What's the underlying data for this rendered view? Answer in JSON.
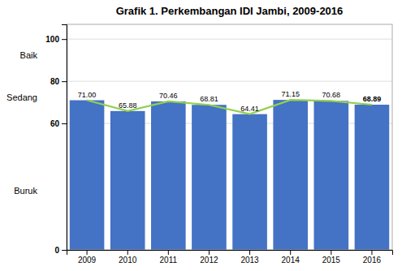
{
  "chart_data": {
    "type": "bar",
    "title": "Grafik 1. Perkembangan IDI Jambi, 2009-2016",
    "categories": [
      "2009",
      "2010",
      "2011",
      "2012",
      "2013",
      "2014",
      "2015",
      "2016"
    ],
    "series": [
      {
        "type": "bar",
        "color": "#4472C4",
        "data_labels": true,
        "values": [
          71.0,
          65.88,
          70.46,
          68.81,
          64.41,
          71.15,
          70.68,
          68.89
        ],
        "value_labels": [
          "71.00",
          "65.88",
          "70.46",
          "68.81",
          "64.41",
          "71.15",
          "70.68",
          "68.89"
        ]
      },
      {
        "type": "line",
        "color": "#92D050",
        "values": [
          71.0,
          65.88,
          70.46,
          68.81,
          64.41,
          71.15,
          70.68,
          68.89
        ]
      }
    ],
    "ylim": [
      0,
      107
    ],
    "yticks": [
      0,
      60,
      80,
      100
    ],
    "grid": true,
    "annotations": [
      {
        "text": "Baik",
        "y": 92
      },
      {
        "text": "Sedang",
        "y": 72
      },
      {
        "text": "Buruk",
        "y": 28
      }
    ]
  }
}
